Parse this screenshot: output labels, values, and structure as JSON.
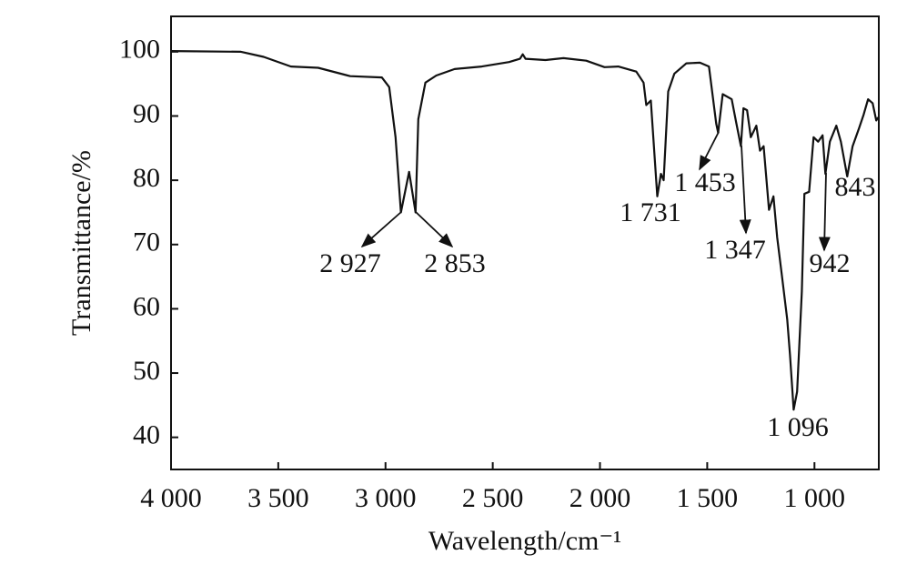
{
  "chart_data": {
    "type": "line",
    "xlabel": "Wavelength/cm⁻¹",
    "ylabel": "Transmittance/%",
    "xlim": [
      4000,
      700
    ],
    "ylim": [
      35,
      105.5
    ],
    "xticks": [
      {
        "value": 4000,
        "label": "4 000"
      },
      {
        "value": 3500,
        "label": "3 500"
      },
      {
        "value": 3000,
        "label": "3 000"
      },
      {
        "value": 2500,
        "label": "2 500"
      },
      {
        "value": 2000,
        "label": "2 000"
      },
      {
        "value": 1500,
        "label": "1 500"
      },
      {
        "value": 1000,
        "label": "1 000"
      }
    ],
    "yticks": [
      40,
      50,
      60,
      70,
      80,
      90,
      100
    ],
    "series": [
      {
        "color": "#111111",
        "x": [
          4000,
          3674,
          3568,
          3441,
          3314,
          3165,
          3017,
          2983,
          2953,
          2928,
          2890,
          2860,
          2847,
          2814,
          2763,
          2678,
          2551,
          2424,
          2373,
          2360,
          2347,
          2254,
          2170,
          2064,
          1979,
          1915,
          1831,
          1797,
          1784,
          1763,
          1733,
          1716,
          1703,
          1682,
          1653,
          1597,
          1534,
          1492,
          1458,
          1449,
          1428,
          1386,
          1364,
          1343,
          1331,
          1314,
          1297,
          1271,
          1254,
          1237,
          1212,
          1191,
          1174,
          1153,
          1127,
          1114,
          1097,
          1081,
          1059,
          1047,
          1025,
          1004,
          983,
          962,
          949,
          928,
          898,
          877,
          847,
          822,
          792,
          771,
          750,
          729,
          712,
          703
        ],
        "values": [
          100.1,
          100,
          99.2,
          97.7,
          97.5,
          96.2,
          96,
          94.5,
          86.7,
          75,
          81.3,
          75,
          89.5,
          95.2,
          96.3,
          97.3,
          97.7,
          98.4,
          98.9,
          99.6,
          98.9,
          98.7,
          99,
          98.6,
          97.6,
          97.7,
          96.9,
          95.2,
          91.7,
          92.4,
          77.5,
          81,
          80,
          93.8,
          96.6,
          98.2,
          98.3,
          97.7,
          88.8,
          87.4,
          93.4,
          92.6,
          88.8,
          85.3,
          91.2,
          90.9,
          86.7,
          88.5,
          84.6,
          85.3,
          75.4,
          77.5,
          71.1,
          65.5,
          58.4,
          52.8,
          44.3,
          47.1,
          62.7,
          77.9,
          78.2,
          86.7,
          86,
          87,
          81,
          86,
          88.5,
          86,
          80.6,
          85.3,
          88.1,
          90.2,
          92.6,
          92,
          89.3,
          89.8
        ]
      }
    ],
    "annotations": [
      "2 927",
      "2 853",
      "1 731",
      "1 453",
      "1 347",
      "1 096",
      "942",
      "843"
    ]
  }
}
